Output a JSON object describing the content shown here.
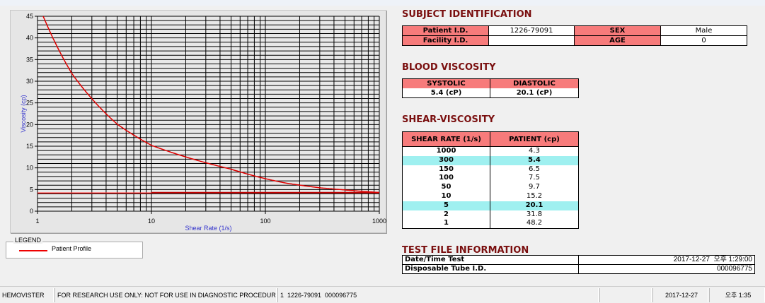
{
  "chart_data": {
    "type": "line",
    "xlabel": "Shear Rate (1/s)",
    "ylabel": "Viscosity (cp)",
    "x_scale": "log",
    "xlim": [
      1,
      1000
    ],
    "ylim": [
      0,
      45
    ],
    "x_ticks": [
      "1",
      "10",
      "100",
      "1000"
    ],
    "y_ticks": [
      "0",
      "5",
      "10",
      "15",
      "20",
      "25",
      "30",
      "35",
      "40",
      "45"
    ],
    "grid": true,
    "series": [
      {
        "name": "Patient Profile",
        "color": "#e00000",
        "x": [
          1,
          2,
          5,
          10,
          50,
          100,
          150,
          300,
          1000
        ],
        "y": [
          48.2,
          31.8,
          20.1,
          15.2,
          9.7,
          7.5,
          6.5,
          5.4,
          4.3
        ]
      }
    ],
    "reference_line": {
      "y": 4.2,
      "color": "#c00000"
    }
  },
  "legend": {
    "title": "LEGEND",
    "items": [
      {
        "label": "Patient Profile",
        "color": "#e00000"
      }
    ]
  },
  "subject": {
    "title": "SUBJECT IDENTIFICATION",
    "patient_id_label": "Patient I.D.",
    "patient_id": "1226-79091",
    "sex_label": "SEX",
    "sex": "Male",
    "facility_label": "Facility I.D.",
    "facility": "",
    "age_label": "AGE",
    "age": "0"
  },
  "blood": {
    "title": "BLOOD VISCOSITY",
    "systolic_label": "SYSTOLIC",
    "diastolic_label": "DIASTOLIC",
    "systolic": "5.4 (cP)",
    "diastolic": "20.1 (cP)"
  },
  "shear": {
    "title": "SHEAR-VISCOSITY",
    "col1": "SHEAR RATE (1/s)",
    "col2": "PATIENT (cp)",
    "rows": [
      {
        "rate": "1000",
        "val": "4.3"
      },
      {
        "rate": "300",
        "val": "5.4",
        "hl": true
      },
      {
        "rate": "150",
        "val": "6.5"
      },
      {
        "rate": "100",
        "val": "7.5"
      },
      {
        "rate": "50",
        "val": "9.7"
      },
      {
        "rate": "10",
        "val": "15.2"
      },
      {
        "rate": "5",
        "val": "20.1",
        "hl": true
      },
      {
        "rate": "2",
        "val": "31.8"
      },
      {
        "rate": "1",
        "val": "48.2"
      }
    ]
  },
  "testfile": {
    "title": "TEST FILE INFORMATION",
    "datetime_label": "Date/Time Test",
    "datetime": "2017-12-27  오후 1:29:00",
    "tube_label": "Disposable Tube I.D.",
    "tube": "000096775"
  },
  "status": {
    "app": "HEMOVISTER",
    "notice": "FOR RESEARCH USE ONLY: NOT FOR USE IN DIAGNOSTIC PROCEDURES",
    "record": "1  1226-79091  000096775",
    "empty": "",
    "date": "2017-12-27",
    "time": "오후 1:35"
  },
  "colors": {
    "header_cell": "#f77b7b",
    "highlight_row": "#9ff0f0",
    "title": "#7a0f0f",
    "curve": "#e00000"
  }
}
